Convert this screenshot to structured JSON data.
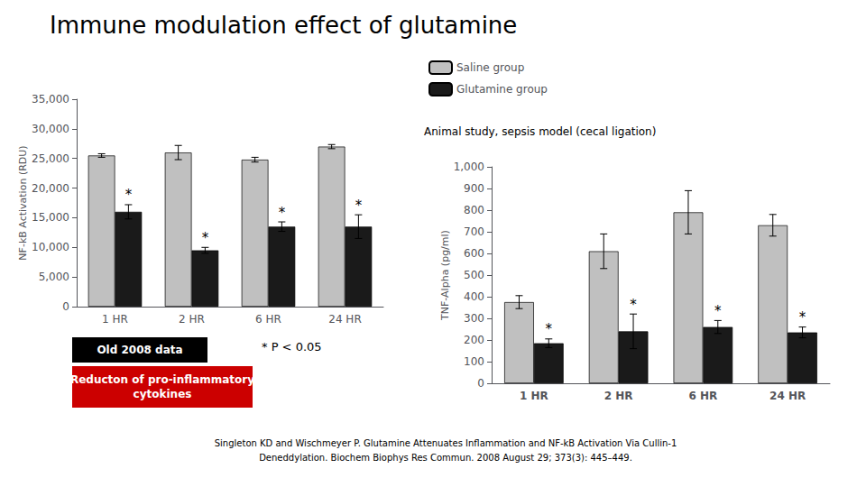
{
  "chart_data": [
    {
      "type": "bar",
      "title": "Immune modulation effect of glutamine",
      "categories": [
        "1 HR",
        "2 HR",
        "6 HR",
        "24 HR"
      ],
      "series": [
        {
          "name": "Saline group",
          "color": "#c0c0c0",
          "values": [
            25500,
            26000,
            24800,
            27000
          ],
          "errors": [
            300,
            1200,
            400,
            350
          ]
        },
        {
          "name": "Glutamine group",
          "color": "#1a1a1a",
          "values": [
            16000,
            9500,
            13500,
            13500
          ],
          "errors": [
            1200,
            500,
            800,
            2000
          ]
        }
      ],
      "ylabel": "NF-kB Activation (RDU)",
      "ylim": [
        0,
        35000
      ],
      "yticks": [
        0,
        5000,
        10000,
        15000,
        20000,
        25000,
        30000,
        35000
      ],
      "grid": false,
      "legend": "top",
      "annotations": [
        {
          "text": "*",
          "series": "Glutamine group",
          "category": "1 HR"
        },
        {
          "text": "*",
          "series": "Glutamine group",
          "category": "2 HR"
        },
        {
          "text": "*",
          "series": "Glutamine group",
          "category": "6 HR"
        },
        {
          "text": "*",
          "series": "Glutamine group",
          "category": "24 HR"
        },
        {
          "text": "Animal study, sepsis model (cecal ligation)"
        },
        {
          "text": "* P < 0.05"
        },
        {
          "text": "Old 2008 data"
        },
        {
          "text": "Reducton of pro-inflammatory\ncytokines"
        },
        {
          "text": "Singleton KD and Wischmeyer P. Glutamine Attenuates Inflammation and NF-kB Activation Via Cullin-1"
        },
        {
          "text": "Deneddylation. Biochem Biophys Res Commun. 2008 August 29; 373(3): 445–449."
        }
      ]
    },
    {
      "type": "bar",
      "categories": [
        "1 HR",
        "2 HR",
        "6 HR",
        "24 HR"
      ],
      "series": [
        {
          "name": "Saline group",
          "color": "#c0c0c0",
          "values": [
            375,
            610,
            790,
            730
          ],
          "errors": [
            30,
            80,
            100,
            50
          ]
        },
        {
          "name": "Glutamine group",
          "color": "#1a1a1a",
          "values": [
            185,
            240,
            260,
            235
          ],
          "errors": [
            20,
            80,
            30,
            25
          ]
        }
      ],
      "ylabel": "TNF-Alpha (pg/ml)",
      "ylim": [
        0,
        1000
      ],
      "yticks": [
        0,
        100,
        200,
        300,
        400,
        500,
        600,
        700,
        800,
        900,
        1000
      ],
      "grid": false,
      "annotations": [
        {
          "text": "*",
          "series": "Glutamine group",
          "category": "1 HR"
        },
        {
          "text": "*",
          "series": "Glutamine group",
          "category": "2 HR"
        },
        {
          "text": "*",
          "series": "Glutamine group",
          "category": "6 HR"
        },
        {
          "text": "*",
          "series": "Glutamine group",
          "category": "24 HR"
        }
      ]
    }
  ]
}
